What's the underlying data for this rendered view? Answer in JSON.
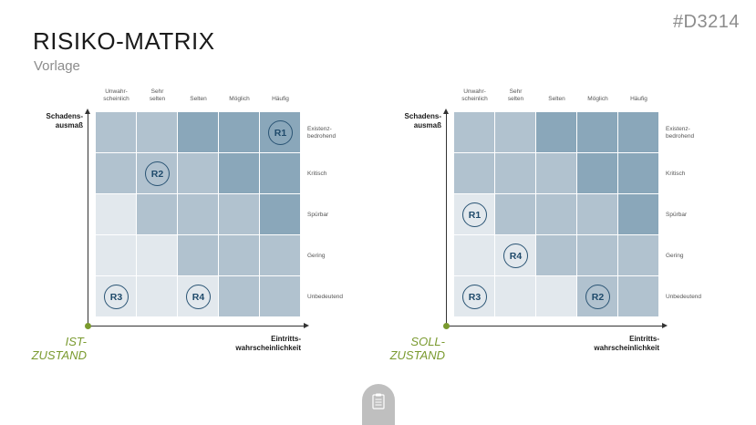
{
  "header": {
    "code": "#D3214",
    "title": "RISIKO-MATRIX",
    "subtitle": "Vorlage"
  },
  "colors": {
    "level1": "#e2e8ed",
    "level2": "#cbd6de",
    "level3": "#b1c2cf",
    "level4": "#98b2c3",
    "level5": "#8aa7ba",
    "accent_green": "#7a9a2f",
    "risk_blue": "#1f4a6b"
  },
  "columns": [
    "Unwahr-\nscheinlich",
    "Sehr\nselten",
    "Selten",
    "Möglich",
    "Häufig"
  ],
  "rows": [
    "Existenz-\nbedrohend",
    "Kritisch",
    "Spürbar",
    "Gering",
    "Unbedeutend"
  ],
  "y_axis_label": "Schadens-\nausmaß",
  "x_axis_label": "Eintritts-\nwahrscheinlichkeit",
  "matrices": [
    {
      "state": "IST-\nZUSTAND",
      "levels": [
        [
          3,
          3,
          5,
          5,
          5
        ],
        [
          3,
          3,
          3,
          5,
          5
        ],
        [
          1,
          3,
          3,
          3,
          5
        ],
        [
          1,
          1,
          3,
          3,
          3
        ],
        [
          1,
          1,
          1,
          3,
          3
        ]
      ],
      "risks": [
        {
          "label": "R1",
          "row": 0,
          "col": 4
        },
        {
          "label": "R2",
          "row": 1,
          "col": 1
        },
        {
          "label": "R3",
          "row": 4,
          "col": 0
        },
        {
          "label": "R4",
          "row": 4,
          "col": 2
        }
      ]
    },
    {
      "state": "SOLL-\nZUSTAND",
      "levels": [
        [
          3,
          3,
          5,
          5,
          5
        ],
        [
          3,
          3,
          3,
          5,
          5
        ],
        [
          1,
          3,
          3,
          3,
          5
        ],
        [
          1,
          1,
          3,
          3,
          3
        ],
        [
          1,
          1,
          1,
          3,
          3
        ]
      ],
      "risks": [
        {
          "label": "R1",
          "row": 2,
          "col": 0
        },
        {
          "label": "R4",
          "row": 3,
          "col": 1
        },
        {
          "label": "R3",
          "row": 4,
          "col": 0
        },
        {
          "label": "R2",
          "row": 4,
          "col": 3
        }
      ]
    }
  ]
}
